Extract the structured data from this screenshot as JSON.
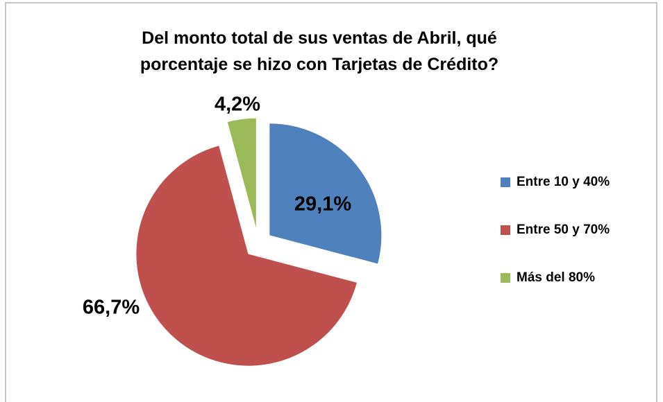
{
  "chart_data": {
    "type": "pie",
    "title": "Del monto total de sus ventas de Abril, qué porcentaje se hizo con Tarjetas de Crédito?",
    "categories": [
      "Entre 10 y 40%",
      "Entre 50 y 70%",
      "Más del 80%"
    ],
    "values": [
      29.1,
      66.7,
      4.2
    ],
    "value_labels": [
      "29,1%",
      "66,7%",
      "4,2%"
    ],
    "colors": [
      "#4f81bd",
      "#c0504d",
      "#9bbb59"
    ],
    "legend": "right"
  }
}
